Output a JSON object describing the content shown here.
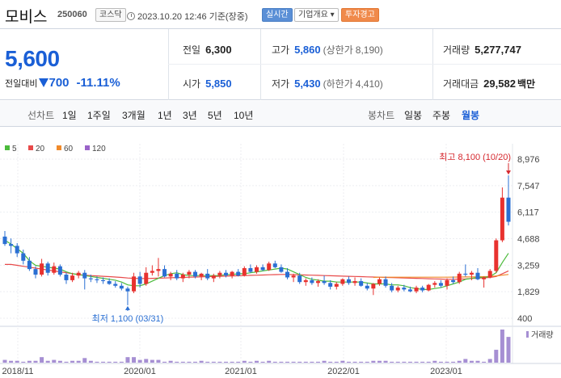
{
  "header": {
    "name": "모비스",
    "code": "250060",
    "market": "코스닥",
    "datetime": "2023.10.20 12:46 기준(장중)",
    "realtime_label": "실시간",
    "corp_info_label": "기업개요",
    "warning_label": "투자경고"
  },
  "quote": {
    "price": "5,600",
    "change_label": "전일대비",
    "change": "700",
    "change_pct": "-11.11%",
    "direction": "down",
    "prev_close_label": "전일",
    "prev_close": "6,300",
    "high_label": "고가",
    "high": "5,860",
    "upper_limit_label": "(상한가",
    "upper_limit": "8,190)",
    "volume_label": "거래량",
    "volume": "5,277,747",
    "open_label": "시가",
    "open": "5,850",
    "low_label": "저가",
    "low": "5,430",
    "lower_limit_label": "(하한가",
    "lower_limit": "4,410)",
    "amount_label": "거래대금",
    "amount": "29,582",
    "amount_unit": "백만"
  },
  "tabs": {
    "line_chart_label": "선차트",
    "periods": [
      "1일",
      "1주일",
      "3개월",
      "1년",
      "3년",
      "5년",
      "10년"
    ],
    "candle_label": "봉차트",
    "candle_periods": [
      "일봉",
      "주봉",
      "월봉"
    ],
    "active_candle": "월봉"
  },
  "colors": {
    "up": "#e8322f",
    "down": "#2a6fd3",
    "ma5": "#4cbb3c",
    "ma20": "#e84a4a",
    "ma60": "#f08a2a",
    "ma120": "#9a63c9"
  },
  "chart_data": {
    "type": "candlestick",
    "legend": [
      {
        "name": "5",
        "color": "#4cbb3c"
      },
      {
        "name": "20",
        "color": "#e84a4a"
      },
      {
        "name": "60",
        "color": "#f08a2a"
      },
      {
        "name": "120",
        "color": "#9a63c9"
      }
    ],
    "yticks": [
      8976,
      7547,
      6117,
      4688,
      3259,
      1829,
      400
    ],
    "ylim": [
      400,
      8976
    ],
    "xticks": [
      "2018/11",
      "2020/01",
      "2021/01",
      "2022/01",
      "2023/01"
    ],
    "max_annotation": "최고 8,100 (10/20)",
    "min_annotation": "최저 1,100 (03/31)",
    "volume_label": "거래량",
    "candles": [
      [
        4800,
        5100,
        4300,
        4400
      ],
      [
        4400,
        4700,
        3900,
        4300
      ],
      [
        4300,
        4450,
        3700,
        3900
      ],
      [
        3900,
        4100,
        3300,
        3500
      ],
      [
        3500,
        3700,
        2950,
        3050
      ],
      [
        3050,
        3200,
        2550,
        2750
      ],
      [
        2750,
        3600,
        2650,
        3350
      ],
      [
        3350,
        3450,
        2700,
        2850
      ],
      [
        2850,
        3400,
        2750,
        3200
      ],
      [
        3200,
        3300,
        2650,
        2750
      ],
      [
        2750,
        2850,
        2250,
        2450
      ],
      [
        2450,
        2850,
        2350,
        2700
      ],
      [
        2700,
        2950,
        2550,
        2850
      ],
      [
        2850,
        3000,
        1950,
        2550
      ],
      [
        2550,
        2750,
        2350,
        2500
      ],
      [
        2500,
        2650,
        2300,
        2450
      ],
      [
        2450,
        2600,
        2250,
        2400
      ],
      [
        2400,
        2550,
        2200,
        2250
      ],
      [
        2250,
        2400,
        2050,
        2150
      ],
      [
        2150,
        2300,
        1900,
        2000
      ],
      [
        2000,
        2100,
        1100,
        1850
      ],
      [
        1850,
        2850,
        1750,
        2650
      ],
      [
        2650,
        2900,
        2050,
        2250
      ],
      [
        2250,
        3150,
        2150,
        2850
      ],
      [
        2850,
        3250,
        2700,
        2950
      ],
      [
        2950,
        3650,
        2650,
        3050
      ],
      [
        3050,
        3250,
        2600,
        2650
      ],
      [
        2650,
        2900,
        2450,
        2800
      ],
      [
        2800,
        3000,
        2450,
        2550
      ],
      [
        2550,
        2850,
        2350,
        2750
      ],
      [
        2750,
        3000,
        2550,
        2900
      ],
      [
        2900,
        3000,
        2550,
        2650
      ],
      [
        2650,
        2850,
        2450,
        2800
      ],
      [
        2800,
        3050,
        2450,
        2550
      ],
      [
        2550,
        2800,
        2350,
        2700
      ],
      [
        2700,
        2950,
        2550,
        2850
      ],
      [
        2850,
        3000,
        2600,
        2700
      ],
      [
        2700,
        2950,
        2550,
        2900
      ],
      [
        2900,
        3050,
        2650,
        2700
      ],
      [
        2700,
        3200,
        2650,
        3100
      ],
      [
        3100,
        3300,
        2850,
        2900
      ],
      [
        2900,
        3250,
        2800,
        3150
      ],
      [
        3150,
        3300,
        2950,
        3000
      ],
      [
        3000,
        3450,
        2950,
        3350
      ],
      [
        3350,
        3500,
        3100,
        3150
      ],
      [
        3150,
        3300,
        2850,
        2900
      ],
      [
        2900,
        3100,
        2500,
        2600
      ],
      [
        2600,
        2800,
        2350,
        2700
      ],
      [
        2700,
        2850,
        2250,
        2350
      ],
      [
        2350,
        2550,
        2150,
        2450
      ],
      [
        2450,
        2600,
        2200,
        2300
      ],
      [
        2300,
        2500,
        2100,
        2400
      ],
      [
        2400,
        2700,
        2200,
        2300
      ],
      [
        2300,
        2450,
        1950,
        2100
      ],
      [
        2100,
        2350,
        1950,
        2250
      ],
      [
        2250,
        2550,
        2150,
        2500
      ],
      [
        2500,
        2650,
        2200,
        2300
      ],
      [
        2300,
        2600,
        2150,
        2400
      ],
      [
        2400,
        2550,
        2100,
        2150
      ],
      [
        2150,
        2300,
        1900,
        2000
      ],
      [
        2000,
        2300,
        1650,
        2250
      ],
      [
        2250,
        2600,
        2150,
        2500
      ],
      [
        2500,
        2650,
        2050,
        2150
      ],
      [
        2150,
        2300,
        1800,
        1900
      ],
      [
        1900,
        2150,
        1800,
        2050
      ],
      [
        2050,
        2200,
        1850,
        1950
      ],
      [
        1950,
        2100,
        1800,
        1850
      ],
      [
        1850,
        2150,
        1750,
        2050
      ],
      [
        2050,
        2150,
        1800,
        1900
      ],
      [
        1900,
        2250,
        1850,
        2200
      ],
      [
        2200,
        2400,
        2050,
        2300
      ],
      [
        2300,
        2450,
        2050,
        2150
      ],
      [
        2150,
        2550,
        1950,
        2450
      ],
      [
        2450,
        2650,
        2250,
        2350
      ],
      [
        2350,
        2900,
        2250,
        2800
      ],
      [
        2800,
        3300,
        2650,
        2750
      ],
      [
        2750,
        2950,
        2450,
        2850
      ],
      [
        2850,
        3100,
        2450,
        2500
      ],
      [
        2500,
        2650,
        2050,
        2600
      ],
      [
        2600,
        3050,
        2550,
        2950
      ],
      [
        2950,
        4700,
        2850,
        4600
      ],
      [
        4600,
        7450,
        4500,
        6900
      ],
      [
        6900,
        8100,
        5400,
        5600
      ]
    ],
    "volumes": [
      3,
      2,
      2,
      1,
      2,
      2,
      6,
      2,
      3,
      2,
      1,
      2,
      2,
      5,
      2,
      1,
      1,
      1,
      1,
      1,
      6,
      6,
      3,
      4,
      3,
      3,
      1,
      2,
      1,
      1,
      1,
      1,
      2,
      1,
      1,
      1,
      1,
      1,
      1,
      2,
      1,
      2,
      1,
      2,
      1,
      1,
      1,
      1,
      1,
      1,
      1,
      1,
      2,
      1,
      1,
      2,
      1,
      1,
      1,
      1,
      2,
      2,
      2,
      1,
      1,
      1,
      1,
      1,
      1,
      1,
      2,
      1,
      1,
      1,
      2,
      4,
      2,
      2,
      1,
      4,
      14,
      36,
      28
    ],
    "ma5": [
      4600,
      4400,
      4150,
      3900,
      3500,
      3250,
      3200,
      3150,
      3100,
      3050,
      2900,
      2800,
      2750,
      2700,
      2650,
      2600,
      2550,
      2500,
      2450,
      2350,
      2200,
      2150,
      2150,
      2250,
      2400,
      2550,
      2700,
      2800,
      2850,
      2750,
      2700,
      2700,
      2700,
      2700,
      2700,
      2700,
      2750,
      2750,
      2800,
      2800,
      2850,
      2900,
      2950,
      3000,
      3050,
      3100,
      3050,
      2900,
      2750,
      2600,
      2500,
      2450,
      2400,
      2400,
      2350,
      2350,
      2350,
      2350,
      2350,
      2300,
      2250,
      2250,
      2250,
      2200,
      2200,
      2150,
      2050,
      2000,
      1950,
      1950,
      2000,
      2050,
      2150,
      2250,
      2350,
      2500,
      2550,
      2600,
      2600,
      2650,
      2850,
      3400,
      3900
    ],
    "ma20": [
      3300,
      3300,
      3250,
      3200,
      3150,
      3100,
      3050,
      3000,
      2950,
      2900,
      2850,
      2800,
      2750,
      2720,
      2700,
      2680,
      2660,
      2640,
      2620,
      2600,
      2570,
      2550,
      2540,
      2540,
      2550,
      2560,
      2570,
      2580,
      2590,
      2600,
      2610,
      2620,
      2630,
      2640,
      2650,
      2660,
      2670,
      2680,
      2690,
      2700,
      2710,
      2720,
      2730,
      2740,
      2750,
      2760,
      2760,
      2750,
      2740,
      2730,
      2720,
      2710,
      2700,
      2690,
      2680,
      2670,
      2660,
      2650,
      2640,
      2630,
      2620,
      2610,
      2600,
      2590,
      2580,
      2570,
      2560,
      2550,
      2540,
      2530,
      2520,
      2510,
      2500,
      2500,
      2510,
      2520,
      2540,
      2560,
      2580,
      2600,
      2650,
      2800,
      2950
    ],
    "ma60": [
      null,
      null,
      null,
      null,
      null,
      null,
      null,
      null,
      null,
      null,
      null,
      null,
      null,
      null,
      null,
      null,
      null,
      null,
      null,
      null,
      null,
      null,
      null,
      null,
      null,
      null,
      null,
      null,
      null,
      null,
      null,
      null,
      null,
      null,
      null,
      null,
      null,
      null,
      null,
      null,
      null,
      null,
      null,
      null,
      null,
      null,
      null,
      null,
      null,
      null,
      null,
      null,
      null,
      null,
      null,
      null,
      null,
      null,
      null,
      null,
      2600,
      2610,
      2610,
      2610,
      2610,
      2610,
      2610,
      2610,
      2610,
      2610,
      2610,
      2610,
      2610,
      2615,
      2620,
      2625,
      2630,
      2635,
      2640,
      2650,
      2680,
      2720,
      2760
    ]
  }
}
